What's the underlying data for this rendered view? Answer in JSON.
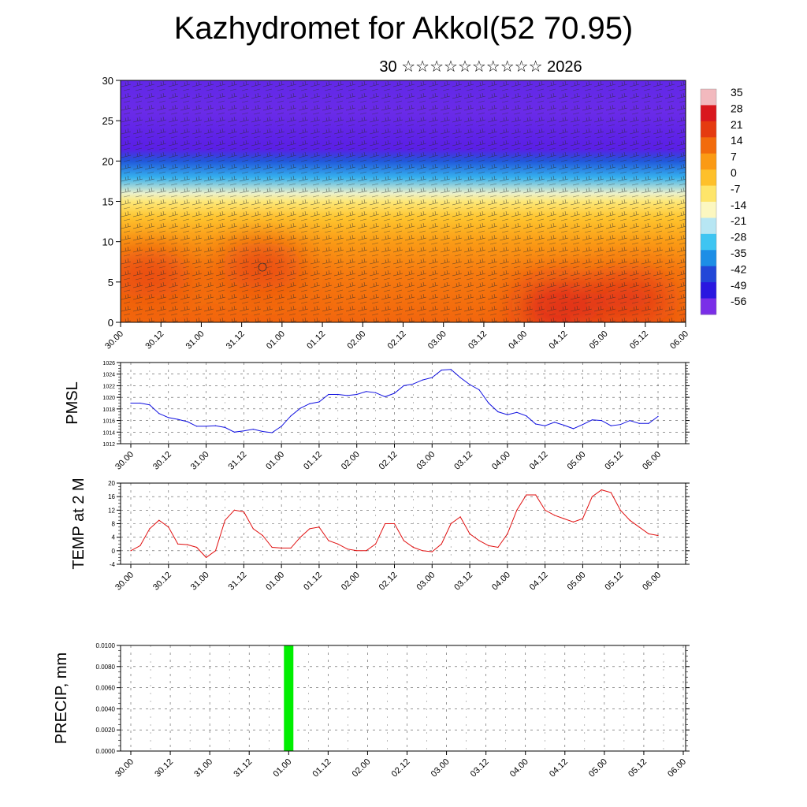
{
  "title": "Kazhydromet for Akkol(52 70.95)",
  "subtitle": "30 ☆☆☆☆☆☆☆☆☆☆ 2026",
  "x_tick_labels": [
    "30.00",
    "30.12",
    "31.00",
    "31.12",
    "01.00",
    "01.12",
    "02.00",
    "02.12",
    "03.00",
    "03.12",
    "04.00",
    "04.12",
    "05.00",
    "05.12",
    "06.00"
  ],
  "chart_data": [
    {
      "id": "cross-section",
      "type": "heatmap",
      "description_fields": "temperature shaded with wind barbs",
      "xlabel": "",
      "ylabel": "",
      "ylim": [
        0,
        30
      ],
      "y_ticks": [
        0,
        5,
        10,
        15,
        20,
        25,
        30
      ],
      "colorbar": {
        "labels": [
          "35",
          "28",
          "21",
          "14",
          "7",
          "0",
          "-7",
          "-14",
          "-21",
          "-28",
          "-35",
          "-42",
          "-49",
          "-56"
        ],
        "colors": [
          "#f2b9be",
          "#d9171e",
          "#e53a10",
          "#f26b0c",
          "#fb9a14",
          "#fec02a",
          "#fee56a",
          "#fcf7c0",
          "#b7e6f3",
          "#3ec5f2",
          "#1d8ee6",
          "#2247d8",
          "#2a17e0",
          "#7a2ee8"
        ]
      },
      "layers": [
        {
          "level": 30,
          "temp": -55
        },
        {
          "level": 26,
          "temp": -56
        },
        {
          "level": 23,
          "temp": -59
        },
        {
          "level": 21.5,
          "temp": -60
        },
        {
          "level": 20,
          "temp": -40
        },
        {
          "level": 18,
          "temp": -30
        },
        {
          "level": 16,
          "temp": -15
        },
        {
          "level": 15,
          "temp": -7
        },
        {
          "level": 13,
          "temp": 0
        },
        {
          "level": 10,
          "temp": 7
        },
        {
          "level": 6,
          "temp": 12
        },
        {
          "level": 2,
          "temp": 14
        },
        {
          "level": 0,
          "temp": 15
        }
      ],
      "hot_spots": [
        {
          "x": 0.05,
          "level": 6,
          "temp": 21
        },
        {
          "x": 0.25,
          "level": 7,
          "temp": 21
        },
        {
          "x": 0.78,
          "level": 2,
          "temp": 28
        },
        {
          "x": 0.9,
          "level": 3,
          "temp": 24
        }
      ]
    },
    {
      "id": "pmsl",
      "type": "line",
      "ylabel": "PMSL",
      "ylim": [
        1012,
        1026
      ],
      "y_ticks": [
        1012,
        1014,
        1016,
        1018,
        1020,
        1022,
        1024,
        1026
      ],
      "color": "#1010e0",
      "x": [
        0,
        3,
        6,
        9,
        12,
        15,
        18,
        21,
        24,
        27,
        30,
        33,
        36,
        39,
        42,
        45,
        48,
        51,
        54,
        57,
        60,
        63,
        66,
        69,
        72,
        75,
        78,
        81,
        84,
        87,
        90,
        93,
        96,
        99,
        102,
        105,
        108,
        111,
        114,
        117,
        120,
        123,
        126,
        129,
        132,
        135,
        138,
        141,
        144,
        147,
        150,
        153,
        156,
        159,
        162,
        165,
        168
      ],
      "values": [
        1019,
        1019,
        1018.7,
        1017.2,
        1016.5,
        1016.2,
        1015.8,
        1015,
        1015,
        1015.1,
        1014.8,
        1014,
        1014.2,
        1014.5,
        1014.1,
        1013.9,
        1015,
        1016.8,
        1018.1,
        1018.9,
        1019.2,
        1020.5,
        1020.5,
        1020.3,
        1020.5,
        1021,
        1020.8,
        1020.1,
        1020.7,
        1022,
        1022.3,
        1023,
        1023.4,
        1024.7,
        1024.8,
        1023.4,
        1022.2,
        1021.3,
        1019,
        1017.5,
        1017,
        1017.4,
        1016.8,
        1015.4,
        1015.1,
        1015.7,
        1015.2,
        1014.6,
        1015.3,
        1016.1,
        1016,
        1015.1,
        1015.3,
        1016,
        1015.5,
        1015.5,
        1016.7
      ]
    },
    {
      "id": "temp2m",
      "type": "line",
      "ylabel": "TEMP at 2 M",
      "ylim": [
        -4,
        20
      ],
      "y_ticks": [
        -4,
        0,
        4,
        8,
        12,
        16,
        20
      ],
      "color": "#e01010",
      "x": [
        0,
        3,
        6,
        9,
        12,
        15,
        18,
        21,
        24,
        27,
        30,
        33,
        36,
        39,
        42,
        45,
        48,
        51,
        54,
        57,
        60,
        63,
        66,
        69,
        72,
        75,
        78,
        81,
        84,
        87,
        90,
        93,
        96,
        99,
        102,
        105,
        108,
        111,
        114,
        117,
        120,
        123,
        126,
        129,
        132,
        135,
        138,
        141,
        144,
        147,
        150,
        153,
        156,
        159,
        162,
        165,
        168
      ],
      "values": [
        0,
        1.5,
        6.5,
        9,
        7,
        2,
        1.8,
        1,
        -2,
        0,
        9,
        12,
        11.5,
        6.5,
        4.5,
        1,
        0.8,
        0.8,
        4,
        6.5,
        7,
        3,
        2,
        0.5,
        0,
        0,
        2,
        8,
        8,
        3,
        1,
        0,
        -0.3,
        2,
        8,
        10,
        5,
        3,
        1.5,
        1,
        5,
        12,
        16.5,
        16.5,
        12,
        10.5,
        9.5,
        8.5,
        9.5,
        16,
        18,
        17.2,
        12,
        9,
        7,
        5,
        4.5
      ]
    },
    {
      "id": "precip",
      "type": "bar",
      "ylabel": "PRECIP, mm",
      "ylim": [
        0,
        0.01
      ],
      "y_tick_labels": [
        "0.0000",
        "0.0020",
        "0.0040",
        "0.0060",
        "0.0080",
        "0.0100"
      ],
      "color": "#00ee00",
      "x_hours": [
        48
      ],
      "values": [
        0.01
      ]
    }
  ]
}
